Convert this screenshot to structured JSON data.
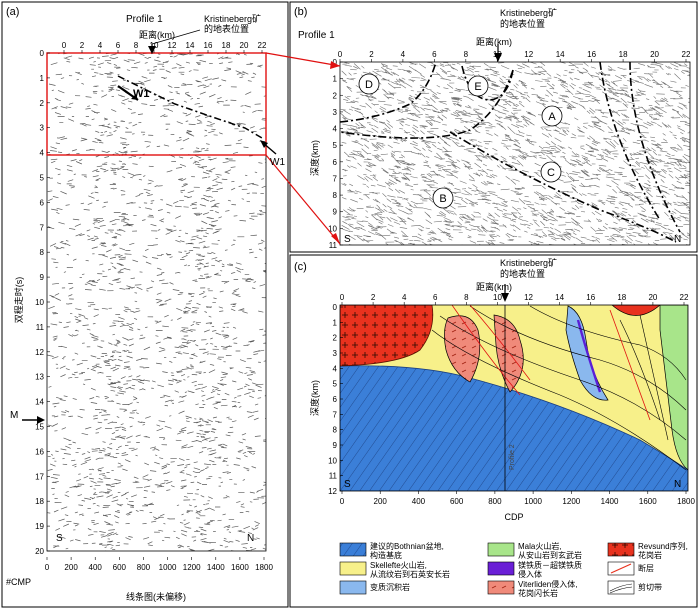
{
  "panels": {
    "a": {
      "label": "(a)",
      "profile": "Profile 1",
      "marker_label_line1": "Kristineberg矿",
      "marker_label_line2": "的地表位置",
      "distance_label": "距离(km)",
      "top_ticks": [
        "0",
        "2",
        "4",
        "6",
        "8",
        "10",
        "12",
        "14",
        "16",
        "18",
        "20",
        "22"
      ],
      "y_label": "双程走时(s)",
      "y_ticks": [
        "0",
        "1",
        "2",
        "3",
        "4",
        "5",
        "6",
        "7",
        "8",
        "9",
        "10",
        "11",
        "12",
        "13",
        "14",
        "15",
        "16",
        "17",
        "18",
        "19",
        "20"
      ],
      "bottom_ticks": [
        "0",
        "200",
        "400",
        "600",
        "800",
        "1000",
        "1200",
        "1400",
        "1600",
        "1800"
      ],
      "bottom_left": "#CMP",
      "caption": "线条图(未偏移)",
      "w1_inner": "W1",
      "w1_outer": "W1",
      "m_label": "M",
      "s_label": "S",
      "n_label": "N"
    },
    "b": {
      "label": "(b)",
      "profile": "Profile 1",
      "marker_label_line1": "Kristineberg矿",
      "marker_label_line2": "的地表位置",
      "distance_label": "距离(km)",
      "top_ticks": [
        "0",
        "2",
        "4",
        "6",
        "8",
        "10",
        "12",
        "14",
        "16",
        "18",
        "20",
        "22"
      ],
      "y_label": "深度(km)",
      "y_ticks": [
        "0",
        "1",
        "2",
        "3",
        "4",
        "5",
        "6",
        "7",
        "8",
        "9",
        "10",
        "11"
      ],
      "circles": [
        "D",
        "E",
        "A",
        "C",
        "B"
      ],
      "s_label": "S",
      "n_label": "N"
    },
    "c": {
      "label": "(c)",
      "marker_label_line1": "Kristineberg矿",
      "marker_label_line2": "的地表位置",
      "distance_label": "距离(km)",
      "top_ticks": [
        "0",
        "2",
        "4",
        "6",
        "8",
        "10",
        "12",
        "14",
        "16",
        "18",
        "20",
        "22"
      ],
      "y_label": "深度(km)",
      "y_ticks": [
        "0",
        "1",
        "2",
        "3",
        "4",
        "5",
        "6",
        "7",
        "8",
        "9",
        "10",
        "11",
        "12"
      ],
      "bottom_ticks": [
        "0",
        "200",
        "400",
        "600",
        "800",
        "1000",
        "1200",
        "1400",
        "1600",
        "1800"
      ],
      "x_label": "CDP",
      "profile_vertical": "Profile 2",
      "s_label": "S",
      "n_label": "N"
    }
  },
  "legend": [
    {
      "lines": [
        "建议的Bothnian盆地,",
        "构造基底"
      ],
      "color": "#3b7fd8",
      "pattern": "hatch"
    },
    {
      "lines": [
        "Skellefte火山岩,",
        "从流纹岩到石英安长岩"
      ],
      "color": "#f7f08a",
      "pattern": "none"
    },
    {
      "lines": [
        "变质沉积岩"
      ],
      "color": "#8ab8ee",
      "pattern": "none"
    },
    {
      "lines": [
        "Mala火山岩,",
        "从安山岩到玄武岩"
      ],
      "color": "#a8e58a",
      "pattern": "none"
    },
    {
      "lines": [
        "镁铁质－超镁铁质",
        "侵入体"
      ],
      "color": "#6a1fd6",
      "pattern": "none"
    },
    {
      "lines": [
        "Viterliden侵入体,",
        "花岗闪长岩"
      ],
      "color": "#f08a7a",
      "pattern": "dash"
    },
    {
      "lines": [
        "Revsund序列,",
        "花岗岩"
      ],
      "color": "#e8321e",
      "pattern": "plus"
    },
    {
      "lines": [
        "断层"
      ],
      "color": "#e8321e",
      "pattern": "fault"
    },
    {
      "lines": [
        "剪切带"
      ],
      "color": "#000000",
      "pattern": "shear"
    }
  ]
}
